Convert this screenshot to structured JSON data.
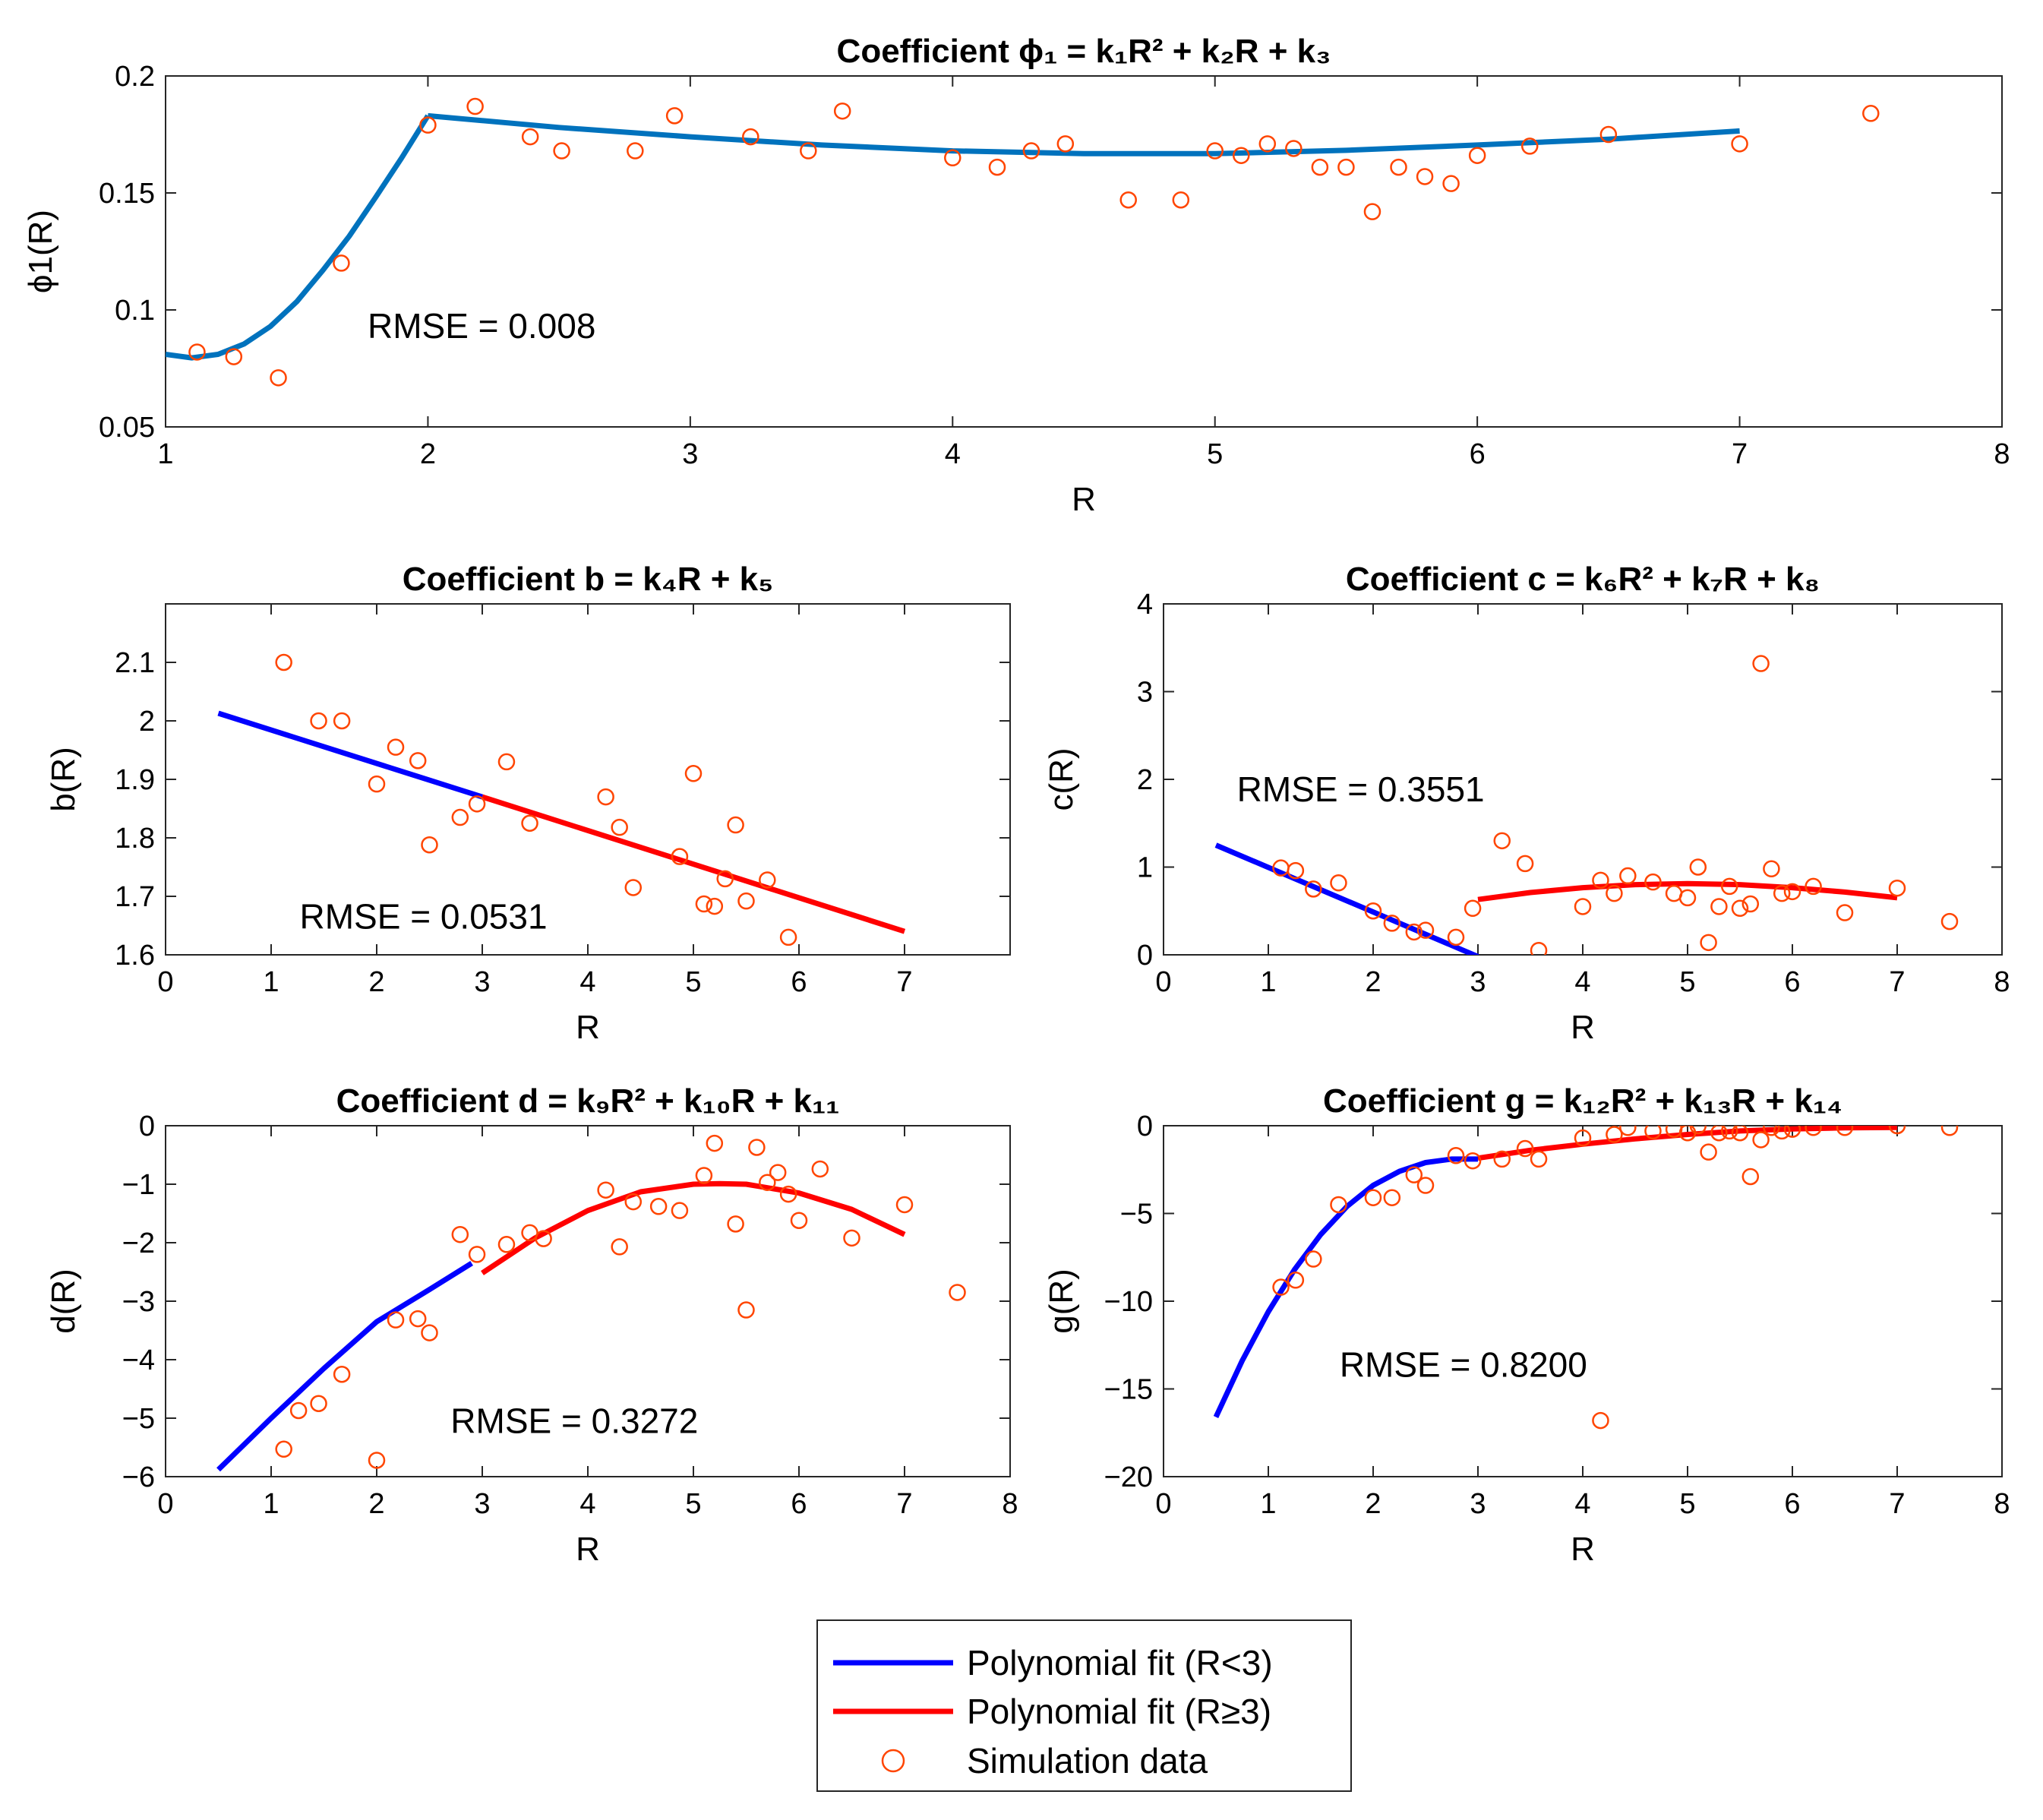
{
  "colors": {
    "blue_fit": "#0000ff",
    "red_fit": "#ff0000",
    "phi_fit": "#0072bd",
    "markers": "#ff4500",
    "axis": "#262626"
  },
  "legend": {
    "entries": [
      {
        "label": "Polynomial fit (R<3)",
        "kind": "line",
        "color": "#0000ff"
      },
      {
        "label": "Polynomial fit (R≥3)",
        "kind": "line",
        "color": "#ff0000"
      },
      {
        "label": "Simulation data",
        "kind": "marker",
        "color": "#ff4500"
      }
    ]
  },
  "chart_data": [
    {
      "id": "phi1",
      "type": "scatter",
      "title": "Coefficient ϕ₁ = k₁R² + k₂R + k₃",
      "xlabel": "R",
      "ylabel": "ϕ1(R)",
      "xlim": [
        1,
        8
      ],
      "ylim": [
        0.05,
        0.2
      ],
      "xticks": [
        1,
        2,
        3,
        4,
        5,
        6,
        7,
        8
      ],
      "yticks": [
        0.05,
        0.1,
        0.15,
        0.2
      ],
      "ytick_labels": [
        "0.05",
        "0.1",
        "0.15",
        "0.2"
      ],
      "annotation": {
        "text": "RMSE = 0.008",
        "x": 1.77,
        "y": 0.088
      },
      "fits": [
        {
          "name": "fit R<2",
          "color": "#0072bd",
          "x": [
            1,
            1.1,
            1.2,
            1.3,
            1.4,
            1.5,
            1.6,
            1.7,
            1.8,
            1.9,
            2.0
          ],
          "y": [
            0.081,
            0.0795,
            0.081,
            0.0855,
            0.093,
            0.1035,
            0.117,
            0.1315,
            0.148,
            0.165,
            0.183
          ]
        },
        {
          "name": "fit R≥2",
          "color": "#0072bd",
          "x": [
            2.0,
            2.5,
            3.0,
            3.5,
            4.0,
            4.5,
            5.0,
            5.5,
            6.0,
            6.5,
            7.0
          ],
          "y": [
            0.183,
            0.178,
            0.174,
            0.1705,
            0.168,
            0.1668,
            0.1668,
            0.1682,
            0.1705,
            0.173,
            0.1765
          ]
        }
      ],
      "points": {
        "x": [
          1.12,
          1.26,
          1.43,
          1.67,
          2.0,
          2.18,
          2.39,
          2.51,
          2.79,
          2.94,
          3.23,
          3.45,
          3.58,
          4.0,
          4.17,
          4.3,
          4.43,
          4.67,
          4.87,
          5.0,
          5.1,
          5.2,
          5.3,
          5.4,
          5.5,
          5.6,
          5.7,
          5.8,
          5.9,
          6.0,
          6.2,
          6.5,
          7.0,
          7.5
        ],
        "y": [
          0.082,
          0.08,
          0.071,
          0.12,
          0.179,
          0.187,
          0.174,
          0.168,
          0.168,
          0.183,
          0.174,
          0.168,
          0.185,
          0.165,
          0.161,
          0.168,
          0.171,
          0.147,
          0.147,
          0.168,
          0.166,
          0.171,
          0.169,
          0.161,
          0.161,
          0.142,
          0.161,
          0.157,
          0.154,
          0.166,
          0.17,
          0.175,
          0.171,
          0.184
        ]
      }
    },
    {
      "id": "b",
      "type": "scatter",
      "title": "Coefficient b = k₄R + k₅",
      "xlabel": "R",
      "ylabel": "b(R)",
      "xlim": [
        0,
        8
      ],
      "ylim": [
        1.6,
        2.2
      ],
      "xticks": [
        0,
        1,
        2,
        3,
        4,
        5,
        6,
        7
      ],
      "yticks": [
        1.6,
        1.7,
        1.8,
        1.9,
        2,
        2.1
      ],
      "ytick_labels": [
        "1.6",
        "1.7",
        "1.8",
        "1.9",
        "2",
        "2.1"
      ],
      "annotation": {
        "text": "RMSE = 0.0531",
        "x": 1.27,
        "y": 1.645
      },
      "fits": [
        {
          "name": "Polynomial fit (R<3)",
          "color": "#0000ff",
          "x": [
            0.5,
            3.0
          ],
          "y": [
            2.013,
            1.87
          ]
        },
        {
          "name": "Polynomial fit (R≥3)",
          "color": "#ff0000",
          "x": [
            3.0,
            7.0
          ],
          "y": [
            1.87,
            1.64
          ]
        }
      ],
      "points": {
        "x": [
          1.12,
          1.45,
          1.67,
          2.0,
          2.18,
          2.39,
          2.5,
          2.79,
          2.95,
          3.23,
          3.45,
          4.17,
          4.3,
          4.43,
          4.87,
          5.0,
          5.1,
          5.2,
          5.3,
          5.4,
          5.5,
          5.7,
          5.9
        ],
        "y": [
          2.1,
          2.0,
          2.0,
          1.892,
          1.955,
          1.932,
          1.788,
          1.835,
          1.858,
          1.93,
          1.825,
          1.87,
          1.818,
          1.715,
          1.768,
          1.91,
          1.687,
          1.683,
          1.73,
          1.822,
          1.692,
          1.728,
          1.63
        ]
      }
    },
    {
      "id": "c",
      "type": "scatter",
      "title": "Coefficient c = k₆R² + k₇R + k₈",
      "xlabel": "R",
      "ylabel": "c(R)",
      "xlim": [
        0,
        8
      ],
      "ylim": [
        0,
        4
      ],
      "xticks": [
        0,
        1,
        2,
        3,
        4,
        5,
        6,
        7,
        8
      ],
      "yticks": [
        0,
        1,
        2,
        3,
        4
      ],
      "ytick_labels": [
        "0",
        "1",
        "2",
        "3",
        "4"
      ],
      "annotation": {
        "text": "RMSE = 0.3551",
        "x": 0.7,
        "y": 1.75
      },
      "fits": [
        {
          "name": "Polynomial fit (R<3)",
          "color": "#0000ff",
          "x": [
            0.5,
            3.0
          ],
          "y": [
            1.25,
            -0.02
          ]
        },
        {
          "name": "Polynomial fit (R≥3)",
          "color": "#ff0000",
          "x": [
            3.0,
            3.5,
            4.0,
            4.5,
            5.0,
            5.5,
            6.0,
            6.5,
            7.0
          ],
          "y": [
            0.63,
            0.71,
            0.765,
            0.8,
            0.812,
            0.8,
            0.765,
            0.715,
            0.65
          ]
        }
      ],
      "points": {
        "x": [
          1.12,
          1.26,
          1.43,
          1.67,
          2.0,
          2.18,
          2.39,
          2.5,
          2.79,
          2.95,
          3.23,
          3.45,
          3.58,
          4.0,
          4.17,
          4.3,
          4.43,
          4.67,
          4.87,
          5.0,
          5.1,
          5.2,
          5.3,
          5.4,
          5.5,
          5.6,
          5.7,
          5.8,
          5.9,
          6.0,
          6.2,
          6.5,
          7.0,
          7.5
        ],
        "y": [
          0.99,
          0.96,
          0.75,
          0.82,
          0.5,
          0.36,
          0.26,
          0.28,
          0.2,
          0.53,
          1.3,
          1.04,
          0.05,
          0.55,
          0.85,
          0.7,
          0.9,
          0.83,
          0.7,
          0.65,
          1.0,
          0.14,
          0.55,
          0.78,
          0.53,
          0.58,
          3.32,
          0.98,
          0.7,
          0.72,
          0.78,
          0.48,
          0.76,
          0.38
        ]
      }
    },
    {
      "id": "d",
      "type": "scatter",
      "title": "Coefficient d = k₉R² + k₁₀R + k₁₁",
      "xlabel": "R",
      "ylabel": "d(R)",
      "xlim": [
        0,
        8
      ],
      "ylim": [
        -6,
        0
      ],
      "xticks": [
        0,
        1,
        2,
        3,
        4,
        5,
        6,
        7,
        8
      ],
      "yticks": [
        -6,
        -5,
        -4,
        -3,
        -2,
        -1,
        0
      ],
      "ytick_labels": [
        "−6",
        "−5",
        "−4",
        "−3",
        "−2",
        "−1",
        "0"
      ],
      "annotation": {
        "text": "RMSE = 0.3272",
        "x": 2.7,
        "y": -5.25
      },
      "fits": [
        {
          "name": "Polynomial fit (R<3)",
          "color": "#0000ff",
          "x": [
            0.5,
            1.0,
            1.5,
            2.0,
            2.5,
            2.9
          ],
          "y": [
            -5.88,
            -5.0,
            -4.15,
            -3.35,
            -2.8,
            -2.35
          ]
        },
        {
          "name": "Polynomial fit (R≥3)",
          "color": "#ff0000",
          "x": [
            3.0,
            3.5,
            4.0,
            4.5,
            5.0,
            5.25,
            5.5,
            6.0,
            6.5,
            7.0
          ],
          "y": [
            -2.52,
            -1.92,
            -1.45,
            -1.13,
            -1.0,
            -0.99,
            -1.0,
            -1.15,
            -1.43,
            -1.86
          ]
        }
      ],
      "points": {
        "x": [
          1.12,
          1.26,
          1.45,
          1.67,
          2.0,
          2.18,
          2.39,
          2.5,
          2.79,
          2.95,
          3.23,
          3.45,
          3.58,
          4.17,
          4.3,
          4.43,
          4.67,
          4.87,
          5.1,
          5.2,
          5.4,
          5.5,
          5.6,
          5.7,
          5.8,
          5.9,
          6.0,
          6.2,
          6.5,
          7.0,
          7.5
        ],
        "y": [
          -5.53,
          -4.87,
          -4.75,
          -4.25,
          -5.72,
          -3.32,
          -3.3,
          -3.54,
          -1.86,
          -2.2,
          -2.03,
          -1.83,
          -1.93,
          -1.1,
          -2.07,
          -1.3,
          -1.38,
          -1.45,
          -0.85,
          -0.3,
          -1.68,
          -3.15,
          -0.37,
          -0.97,
          -0.8,
          -1.17,
          -1.62,
          -0.74,
          -1.92,
          -1.35,
          -2.85
        ]
      }
    },
    {
      "id": "g",
      "type": "scatter",
      "title": "Coefficient g = k₁₂R² + k₁₃R + k₁₄",
      "xlabel": "R",
      "ylabel": "g(R)",
      "xlim": [
        0,
        8
      ],
      "ylim": [
        -20,
        0
      ],
      "xticks": [
        0,
        1,
        2,
        3,
        4,
        5,
        6,
        7,
        8
      ],
      "yticks": [
        -20,
        -15,
        -10,
        -5,
        0
      ],
      "ytick_labels": [
        "−20",
        "−15",
        "−10",
        "−5",
        "0"
      ],
      "annotation": {
        "text": "RMSE = 0.8200",
        "x": 1.68,
        "y": -14.3
      },
      "fits": [
        {
          "name": "Polynomial fit (R<3)",
          "color": "#0000ff",
          "x": [
            0.5,
            0.75,
            1.0,
            1.25,
            1.5,
            1.75,
            2.0,
            2.25,
            2.5,
            2.75,
            3.0
          ],
          "y": [
            -16.6,
            -13.4,
            -10.6,
            -8.2,
            -6.2,
            -4.6,
            -3.4,
            -2.6,
            -2.1,
            -1.9,
            -1.9
          ]
        },
        {
          "name": "Polynomial fit (R≥3)",
          "color": "#ff0000",
          "x": [
            3.0,
            3.5,
            4.0,
            4.5,
            5.0,
            5.5,
            6.0,
            6.5,
            7.0
          ],
          "y": [
            -1.85,
            -1.4,
            -1.05,
            -0.75,
            -0.5,
            -0.3,
            -0.18,
            -0.12,
            -0.1
          ]
        }
      ],
      "points": {
        "x": [
          1.12,
          1.26,
          1.43,
          1.67,
          2.0,
          2.18,
          2.39,
          2.5,
          2.79,
          2.95,
          3.23,
          3.45,
          3.58,
          4.0,
          4.17,
          4.3,
          4.43,
          4.67,
          4.87,
          5.0,
          5.1,
          5.2,
          5.3,
          5.4,
          5.5,
          5.6,
          5.7,
          5.8,
          5.9,
          6.0,
          6.2,
          6.5,
          7.0,
          7.5
        ],
        "y": [
          -9.2,
          -8.8,
          -7.6,
          -4.5,
          -4.1,
          -4.1,
          -2.8,
          -3.4,
          -1.7,
          -2.0,
          -1.9,
          -1.3,
          -1.9,
          -0.7,
          -16.8,
          -0.5,
          -0.1,
          -0.3,
          -0.2,
          -0.4,
          0.0,
          -1.5,
          -0.4,
          -0.3,
          -0.4,
          -2.9,
          -0.8,
          -0.1,
          -0.3,
          -0.2,
          -0.1,
          -0.1,
          0.0,
          -0.1
        ]
      }
    }
  ]
}
